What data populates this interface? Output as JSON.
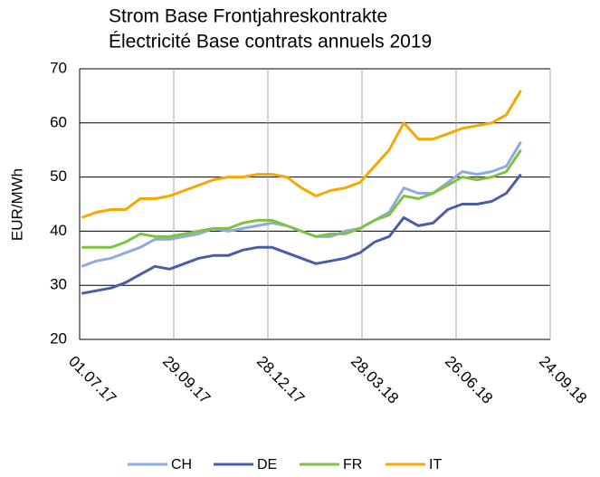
{
  "chart_data": {
    "type": "line",
    "title": [
      "Strom Base Frontjahreskontrakte",
      "Électricité Base contrats annuels 2019"
    ],
    "y_label": "EUR/MWh",
    "x": [
      "2017-07-03",
      "2017-07-17",
      "2017-07-31",
      "2017-08-14",
      "2017-08-28",
      "2017-09-11",
      "2017-09-25",
      "2017-10-09",
      "2017-10-23",
      "2017-11-06",
      "2017-11-20",
      "2017-12-04",
      "2017-12-18",
      "2018-01-01",
      "2018-01-15",
      "2018-01-29",
      "2018-02-12",
      "2018-02-26",
      "2018-03-12",
      "2018-03-26",
      "2018-04-09",
      "2018-04-23",
      "2018-05-07",
      "2018-05-21",
      "2018-06-04",
      "2018-06-18",
      "2018-07-02",
      "2018-07-16",
      "2018-07-30",
      "2018-08-13",
      "2018-08-27"
    ],
    "series": [
      {
        "name": "CH",
        "color": "#8faadc",
        "values": [
          33.5,
          34.5,
          35,
          36,
          37,
          38.5,
          38.5,
          39,
          39.5,
          40.5,
          40,
          40.5,
          41,
          41.5,
          41,
          40,
          39,
          39,
          40,
          40.5,
          42,
          43.5,
          48,
          47,
          47,
          49,
          51,
          50.5,
          51,
          52,
          56.5
        ]
      },
      {
        "name": "DE",
        "color": "#4a5ea8",
        "values": [
          28.5,
          29,
          29.5,
          30.5,
          32,
          33.5,
          33,
          34,
          35,
          35.5,
          35.5,
          36.5,
          37,
          37,
          36,
          35,
          34,
          34.5,
          35,
          36,
          38,
          39,
          42.5,
          41,
          41.5,
          44,
          45,
          45,
          45.5,
          47,
          50.5
        ]
      },
      {
        "name": "FR",
        "color": "#7fc241",
        "values": [
          37,
          37,
          37,
          38,
          39.5,
          39,
          39,
          39.5,
          40,
          40.5,
          40.5,
          41.5,
          42,
          42,
          41,
          40,
          39,
          39.5,
          39.5,
          40.5,
          42,
          43,
          46.5,
          46,
          47,
          48.5,
          50,
          49.5,
          50,
          51,
          55
        ]
      },
      {
        "name": "IT",
        "color": "#f5a800",
        "values": [
          42.5,
          43.5,
          44,
          44,
          46,
          46,
          46.5,
          47.5,
          48.5,
          49.5,
          50,
          50,
          50.5,
          50.5,
          50,
          48,
          46.5,
          47.5,
          48,
          49,
          52,
          55,
          60,
          57,
          57,
          58,
          59,
          59.5,
          60,
          61.5,
          66
        ]
      }
    ],
    "xlim": [
      "2017-07-01",
      "2018-09-24"
    ],
    "xticks": [
      {
        "value": "2017-07-01",
        "label": "01.07.17"
      },
      {
        "value": "2017-09-29",
        "label": "29.09.17"
      },
      {
        "value": "2017-12-28",
        "label": "28.12.17"
      },
      {
        "value": "2018-03-28",
        "label": "28.03.18"
      },
      {
        "value": "2018-06-26",
        "label": "26.06.18"
      },
      {
        "value": "2018-09-24",
        "label": "24.09.18"
      }
    ],
    "ylim": [
      20,
      70
    ],
    "yticks": [
      20,
      30,
      40,
      50,
      60,
      70
    ],
    "grid": true,
    "legend": "bottom"
  }
}
